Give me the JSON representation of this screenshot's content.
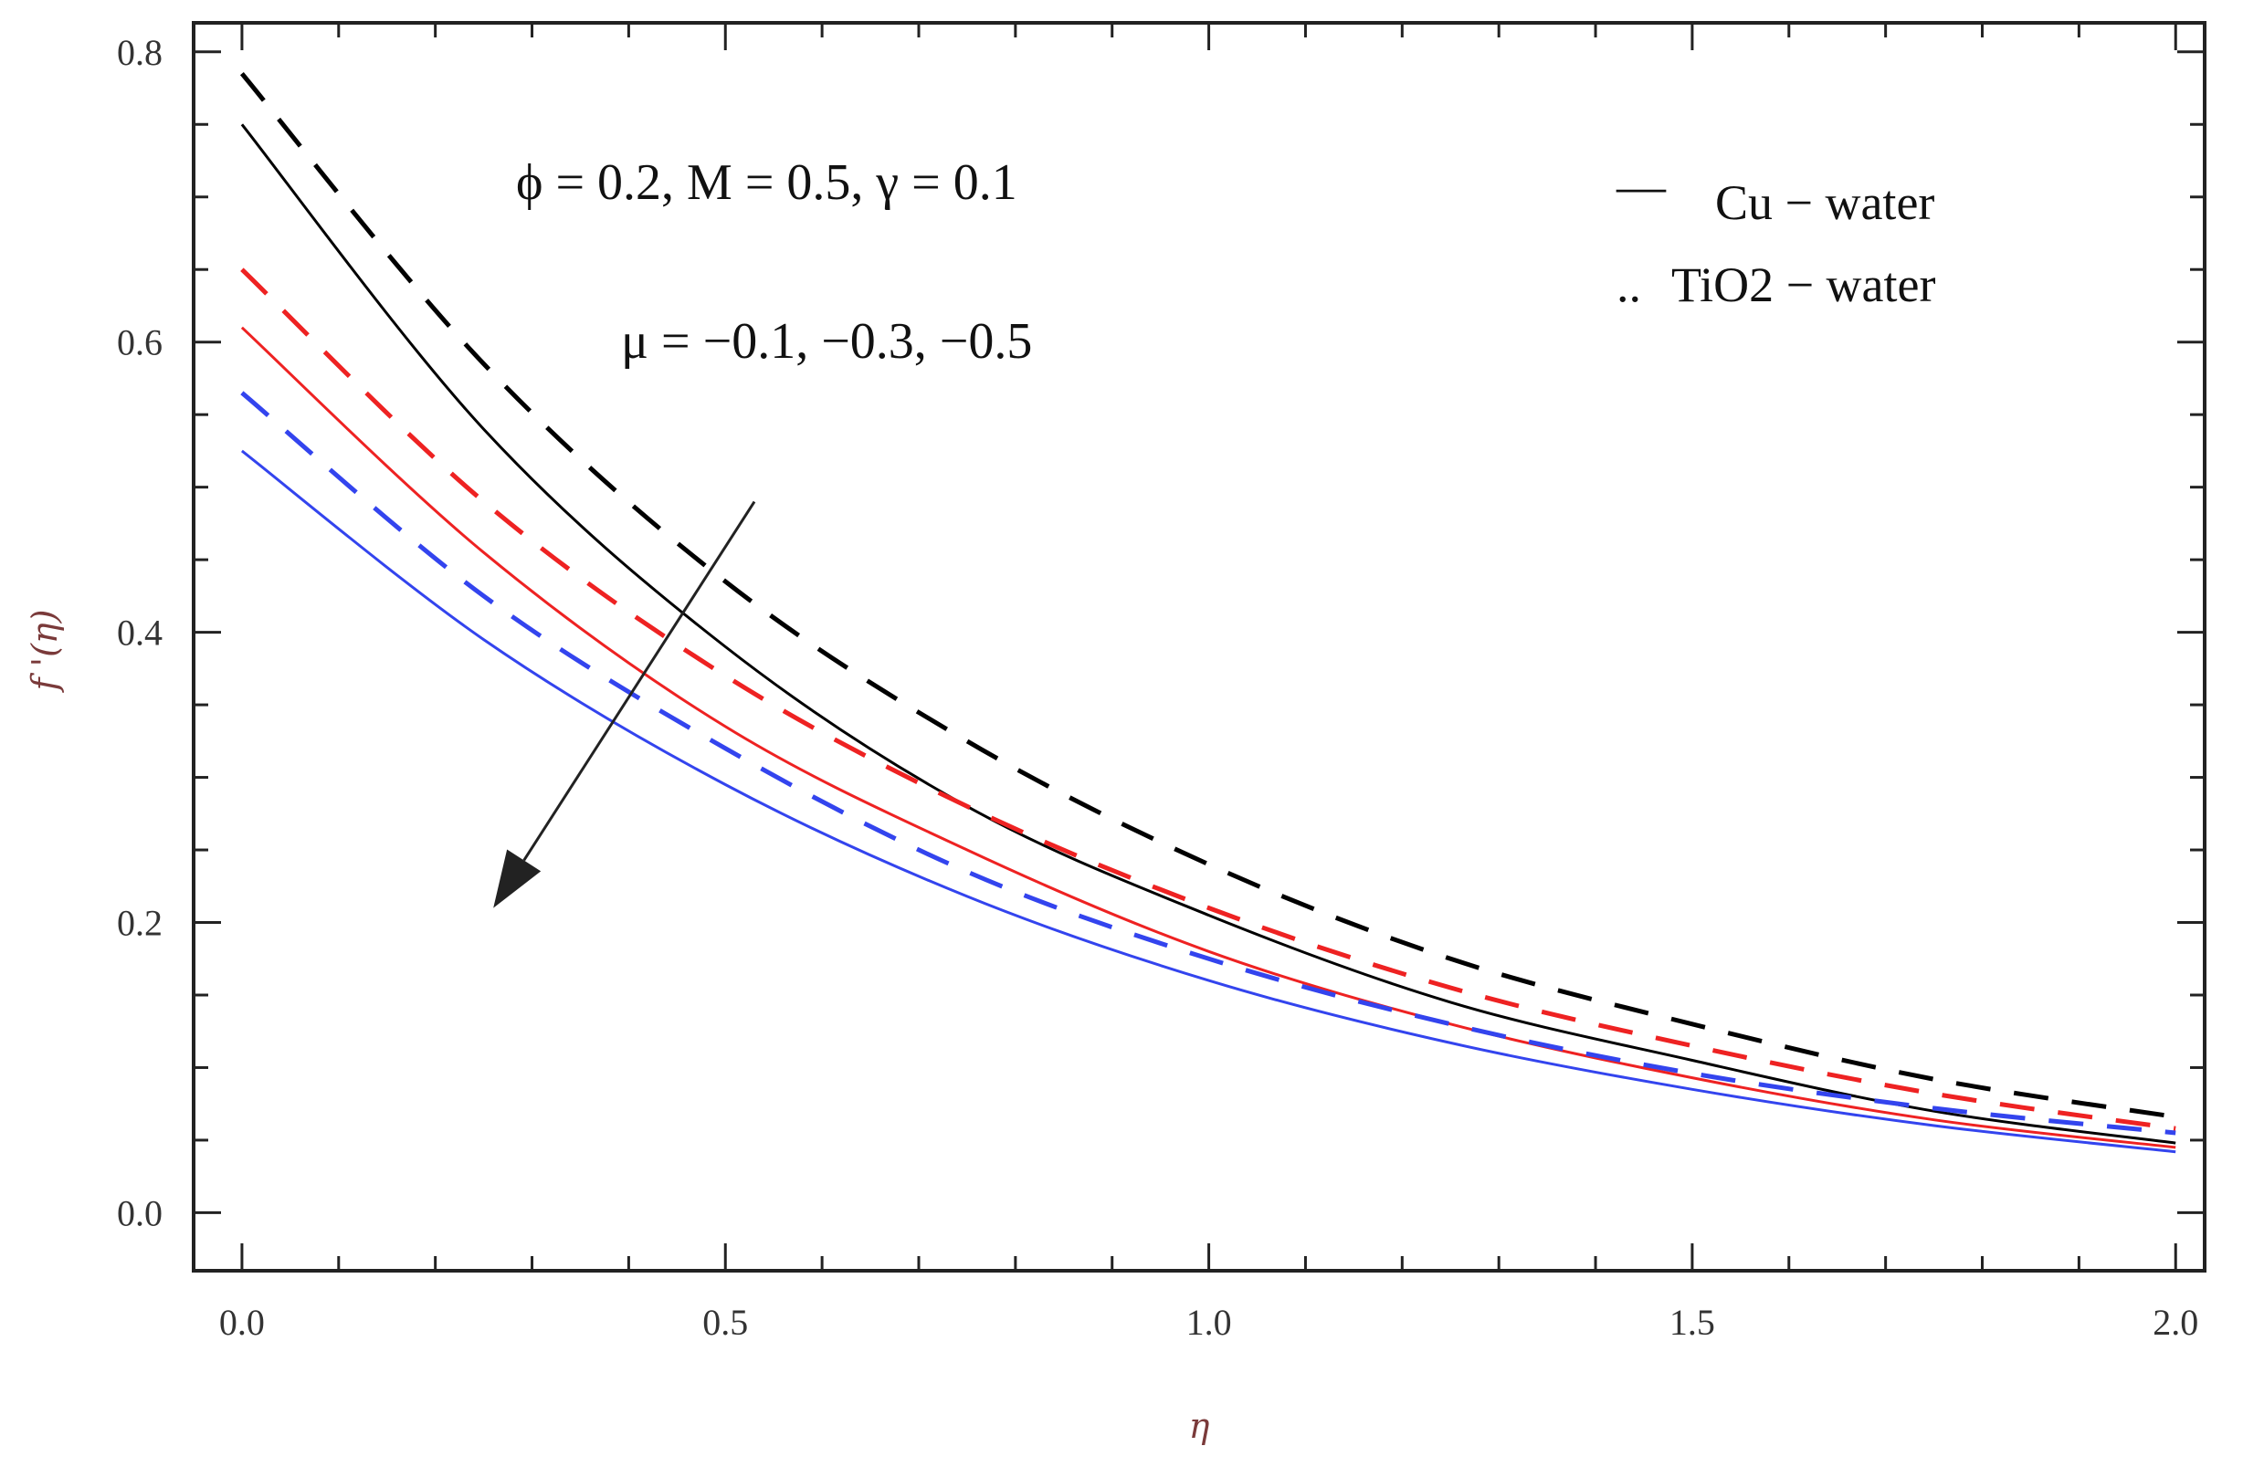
{
  "chart_data": {
    "type": "line",
    "xlabel": "η",
    "ylabel": "f '(η)",
    "xlim": [
      -0.05,
      2.03
    ],
    "ylim": [
      -0.04,
      0.82
    ],
    "x_ticks": [
      "0.0",
      "0.5",
      "1.0",
      "1.5",
      "2.0"
    ],
    "y_ticks": [
      "0.0",
      "0.2",
      "0.4",
      "0.6",
      "0.8"
    ],
    "grid": false,
    "legend_position": "top-right",
    "legend": [
      {
        "marker": "—",
        "label": "Cu − water",
        "style": "solid"
      },
      {
        "marker": "..",
        "label": "TiO2 − water",
        "style": "dashed"
      }
    ],
    "annotations": {
      "params": "ϕ = 0.2, M = 0.5, γ = 0.1",
      "mu": "μ = −0.1,  −0.3,  −0.5"
    },
    "arrow": {
      "from": [
        0.53,
        0.49
      ],
      "to": [
        0.26,
        0.21
      ]
    },
    "series": [
      {
        "fluid": "Cu",
        "mu": -0.1,
        "color": "#000000",
        "style": "solid",
        "x": [
          0,
          0.25,
          0.5,
          0.75,
          1.0,
          1.25,
          1.5,
          1.75,
          2.0
        ],
        "y": [
          0.75,
          0.54,
          0.39,
          0.28,
          0.205,
          0.145,
          0.105,
          0.07,
          0.048
        ]
      },
      {
        "fluid": "Cu",
        "mu": -0.3,
        "color": "#ee2222",
        "style": "solid",
        "x": [
          0,
          0.25,
          0.5,
          0.75,
          1.0,
          1.25,
          1.5,
          1.75,
          2.0
        ],
        "y": [
          0.61,
          0.455,
          0.335,
          0.25,
          0.18,
          0.13,
          0.093,
          0.064,
          0.045
        ]
      },
      {
        "fluid": "Cu",
        "mu": -0.5,
        "color": "#3344ee",
        "style": "solid",
        "x": [
          0,
          0.25,
          0.5,
          0.75,
          1.0,
          1.25,
          1.5,
          1.75,
          2.0
        ],
        "y": [
          0.525,
          0.395,
          0.295,
          0.218,
          0.16,
          0.117,
          0.085,
          0.06,
          0.042
        ]
      },
      {
        "fluid": "TiO2",
        "mu": -0.1,
        "color": "#000000",
        "style": "dashed",
        "x": [
          0,
          0.25,
          0.5,
          0.75,
          1.0,
          1.25,
          1.5,
          1.75,
          2.0
        ],
        "y": [
          0.785,
          0.585,
          0.435,
          0.325,
          0.24,
          0.175,
          0.13,
          0.092,
          0.066
        ]
      },
      {
        "fluid": "TiO2",
        "mu": -0.3,
        "color": "#ee2222",
        "style": "dashed",
        "x": [
          0,
          0.25,
          0.5,
          0.75,
          1.0,
          1.25,
          1.5,
          1.75,
          2.0
        ],
        "y": [
          0.65,
          0.49,
          0.37,
          0.28,
          0.21,
          0.155,
          0.115,
          0.082,
          0.058
        ]
      },
      {
        "fluid": "TiO2",
        "mu": -0.5,
        "color": "#3344ee",
        "style": "dashed",
        "x": [
          0,
          0.25,
          0.5,
          0.75,
          1.0,
          1.25,
          1.5,
          1.75,
          2.0
        ],
        "y": [
          0.565,
          0.425,
          0.32,
          0.235,
          0.175,
          0.13,
          0.096,
          0.072,
          0.055
        ]
      }
    ]
  }
}
